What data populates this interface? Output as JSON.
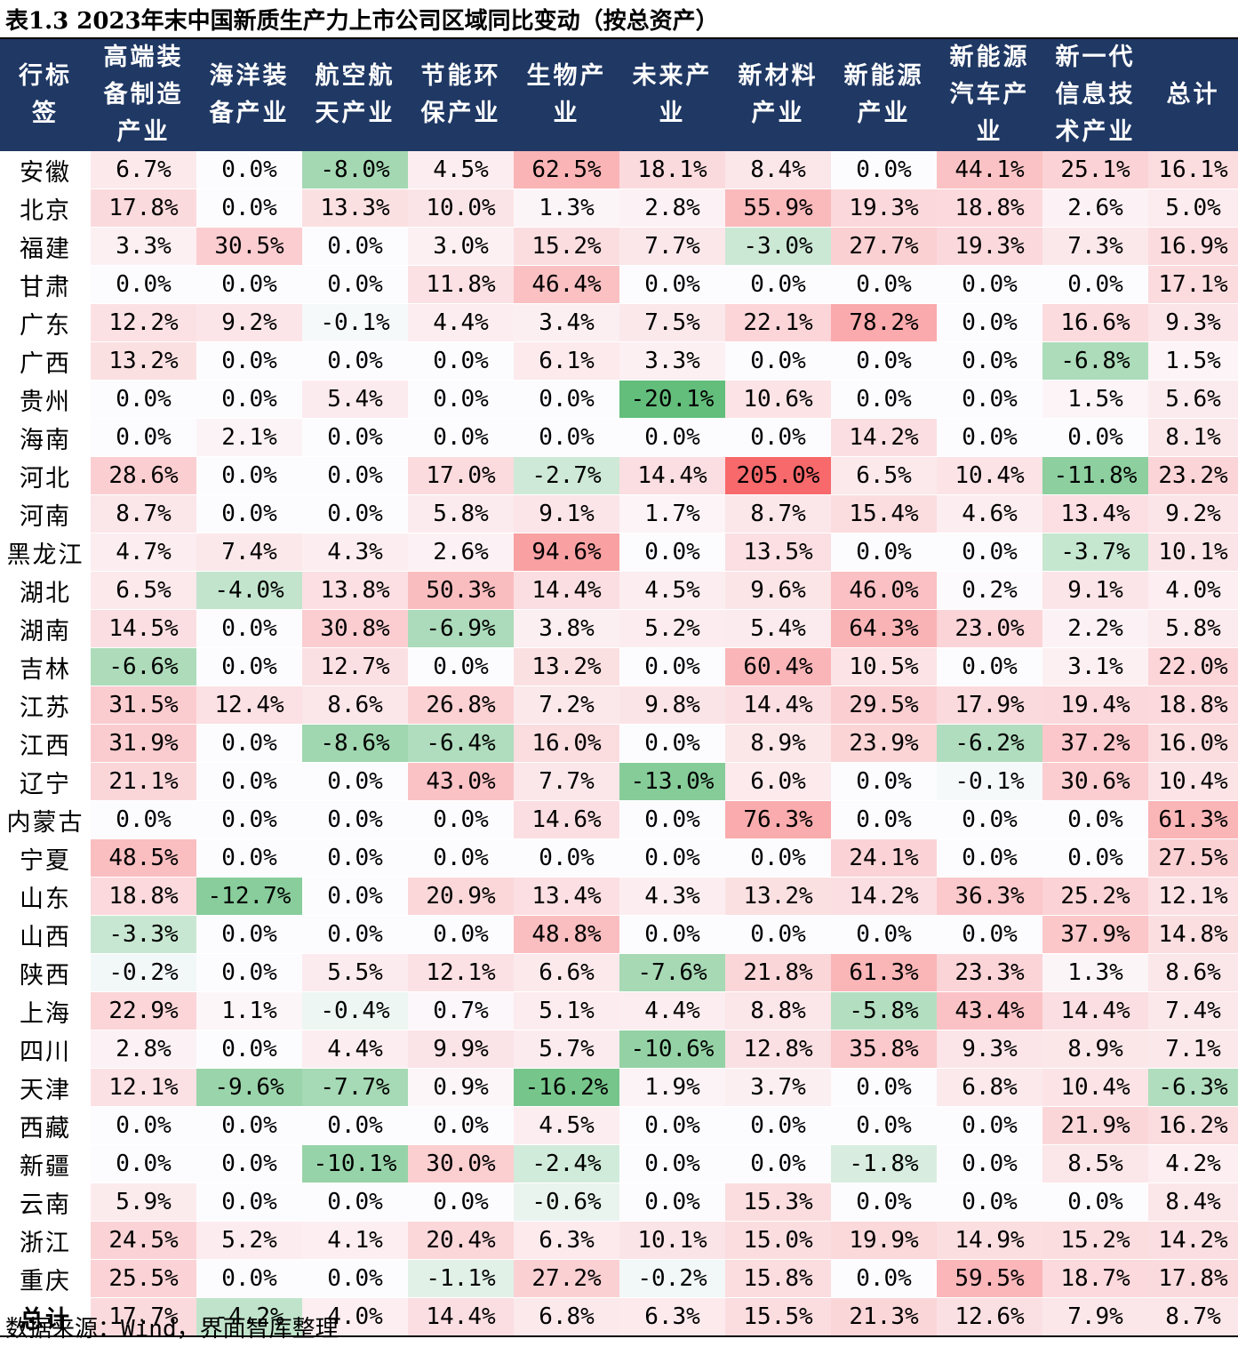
{
  "title": "表1.3 2023年末中国新质生产力上市公司区域同比变动（按总资产）",
  "headers": [
    "行标\n签",
    "高端装\n备制造\n产业",
    "海洋装\n备产业",
    "航空航\n天产业",
    "节能环\n保产业",
    "生物产\n业",
    "未来产\n业",
    "新材料\n产业",
    "新能源\n产业",
    "新能源\n汽车产\n业",
    "新一代\n信息技\n术产业",
    "总计"
  ],
  "rows": [
    {
      "region": "安徽",
      "values": [
        "6.7%",
        "0.0%",
        "-8.0%",
        "4.5%",
        "62.5%",
        "18.1%",
        "8.4%",
        "0.0%",
        "44.1%",
        "25.1%",
        "16.1%"
      ]
    },
    {
      "region": "北京",
      "values": [
        "17.8%",
        "0.0%",
        "13.3%",
        "10.0%",
        "1.3%",
        "2.8%",
        "55.9%",
        "19.3%",
        "18.8%",
        "2.6%",
        "5.0%"
      ]
    },
    {
      "region": "福建",
      "values": [
        "3.3%",
        "30.5%",
        "0.0%",
        "3.0%",
        "15.2%",
        "7.7%",
        "-3.0%",
        "27.7%",
        "19.3%",
        "7.3%",
        "16.9%"
      ]
    },
    {
      "region": "甘肃",
      "values": [
        "0.0%",
        "0.0%",
        "0.0%",
        "11.8%",
        "46.4%",
        "0.0%",
        "0.0%",
        "0.0%",
        "0.0%",
        "0.0%",
        "17.1%"
      ]
    },
    {
      "region": "广东",
      "values": [
        "12.2%",
        "9.2%",
        "-0.1%",
        "4.4%",
        "3.4%",
        "7.5%",
        "22.1%",
        "78.2%",
        "0.0%",
        "16.6%",
        "9.3%"
      ]
    },
    {
      "region": "广西",
      "values": [
        "13.2%",
        "0.0%",
        "0.0%",
        "0.0%",
        "6.1%",
        "3.3%",
        "0.0%",
        "0.0%",
        "0.0%",
        "-6.8%",
        "1.5%"
      ]
    },
    {
      "region": "贵州",
      "values": [
        "0.0%",
        "0.0%",
        "5.4%",
        "0.0%",
        "0.0%",
        "-20.1%",
        "10.6%",
        "0.0%",
        "0.0%",
        "1.5%",
        "5.6%"
      ]
    },
    {
      "region": "海南",
      "values": [
        "0.0%",
        "2.1%",
        "0.0%",
        "0.0%",
        "0.0%",
        "0.0%",
        "0.0%",
        "14.2%",
        "0.0%",
        "0.0%",
        "8.1%"
      ]
    },
    {
      "region": "河北",
      "values": [
        "28.6%",
        "0.0%",
        "0.0%",
        "17.0%",
        "-2.7%",
        "14.4%",
        "205.0%",
        "6.5%",
        "10.4%",
        "-11.8%",
        "23.2%"
      ]
    },
    {
      "region": "河南",
      "values": [
        "8.7%",
        "0.0%",
        "0.0%",
        "5.8%",
        "9.1%",
        "1.7%",
        "8.7%",
        "15.4%",
        "4.6%",
        "13.4%",
        "9.2%"
      ]
    },
    {
      "region": "黑龙江",
      "values": [
        "4.7%",
        "7.4%",
        "4.3%",
        "2.6%",
        "94.6%",
        "0.0%",
        "13.5%",
        "0.0%",
        "0.0%",
        "-3.7%",
        "10.1%"
      ]
    },
    {
      "region": "湖北",
      "values": [
        "6.5%",
        "-4.0%",
        "13.8%",
        "50.3%",
        "14.4%",
        "4.5%",
        "9.6%",
        "46.0%",
        "0.2%",
        "9.1%",
        "4.0%"
      ]
    },
    {
      "region": "湖南",
      "values": [
        "14.5%",
        "0.0%",
        "30.8%",
        "-6.9%",
        "3.8%",
        "5.2%",
        "5.4%",
        "64.3%",
        "23.0%",
        "2.2%",
        "5.8%"
      ]
    },
    {
      "region": "吉林",
      "values": [
        "-6.6%",
        "0.0%",
        "12.7%",
        "0.0%",
        "13.2%",
        "0.0%",
        "60.4%",
        "10.5%",
        "0.0%",
        "3.1%",
        "22.0%"
      ]
    },
    {
      "region": "江苏",
      "values": [
        "31.5%",
        "12.4%",
        "8.6%",
        "26.8%",
        "7.2%",
        "9.8%",
        "14.4%",
        "29.5%",
        "17.9%",
        "19.4%",
        "18.8%"
      ]
    },
    {
      "region": "江西",
      "values": [
        "31.9%",
        "0.0%",
        "-8.6%",
        "-6.4%",
        "16.0%",
        "0.0%",
        "8.9%",
        "23.9%",
        "-6.2%",
        "37.2%",
        "16.0%"
      ]
    },
    {
      "region": "辽宁",
      "values": [
        "21.1%",
        "0.0%",
        "0.0%",
        "43.0%",
        "7.7%",
        "-13.0%",
        "6.0%",
        "0.0%",
        "-0.1%",
        "30.6%",
        "10.4%"
      ]
    },
    {
      "region": "内蒙古",
      "values": [
        "0.0%",
        "0.0%",
        "0.0%",
        "0.0%",
        "14.6%",
        "0.0%",
        "76.3%",
        "0.0%",
        "0.0%",
        "0.0%",
        "61.3%"
      ]
    },
    {
      "region": "宁夏",
      "values": [
        "48.5%",
        "0.0%",
        "0.0%",
        "0.0%",
        "0.0%",
        "0.0%",
        "0.0%",
        "24.1%",
        "0.0%",
        "0.0%",
        "27.5%"
      ]
    },
    {
      "region": "山东",
      "values": [
        "18.8%",
        "-12.7%",
        "0.0%",
        "20.9%",
        "13.4%",
        "4.3%",
        "13.2%",
        "14.2%",
        "36.3%",
        "25.2%",
        "12.1%"
      ]
    },
    {
      "region": "山西",
      "values": [
        "-3.3%",
        "0.0%",
        "0.0%",
        "0.0%",
        "48.8%",
        "0.0%",
        "0.0%",
        "0.0%",
        "0.0%",
        "37.9%",
        "14.8%"
      ]
    },
    {
      "region": "陕西",
      "values": [
        "-0.2%",
        "0.0%",
        "5.5%",
        "12.1%",
        "6.6%",
        "-7.6%",
        "21.8%",
        "61.3%",
        "23.3%",
        "1.3%",
        "8.6%"
      ]
    },
    {
      "region": "上海",
      "values": [
        "22.9%",
        "1.1%",
        "-0.4%",
        "0.7%",
        "5.1%",
        "4.4%",
        "8.8%",
        "-5.8%",
        "43.4%",
        "14.4%",
        "7.4%"
      ]
    },
    {
      "region": "四川",
      "values": [
        "2.8%",
        "0.0%",
        "4.4%",
        "9.9%",
        "5.7%",
        "-10.6%",
        "12.8%",
        "35.8%",
        "9.3%",
        "8.9%",
        "7.1%"
      ]
    },
    {
      "region": "天津",
      "values": [
        "12.1%",
        "-9.6%",
        "-7.7%",
        "0.9%",
        "-16.2%",
        "1.9%",
        "3.7%",
        "0.0%",
        "6.8%",
        "10.4%",
        "-6.3%"
      ]
    },
    {
      "region": "西藏",
      "values": [
        "0.0%",
        "0.0%",
        "0.0%",
        "0.0%",
        "4.5%",
        "0.0%",
        "0.0%",
        "0.0%",
        "0.0%",
        "21.9%",
        "16.2%"
      ]
    },
    {
      "region": "新疆",
      "values": [
        "0.0%",
        "0.0%",
        "-10.1%",
        "30.0%",
        "-2.4%",
        "0.0%",
        "0.0%",
        "-1.8%",
        "0.0%",
        "8.5%",
        "4.2%"
      ]
    },
    {
      "region": "云南",
      "values": [
        "5.9%",
        "0.0%",
        "0.0%",
        "0.0%",
        "-0.6%",
        "0.0%",
        "15.3%",
        "0.0%",
        "0.0%",
        "0.0%",
        "8.4%"
      ]
    },
    {
      "region": "浙江",
      "values": [
        "24.5%",
        "5.2%",
        "4.1%",
        "20.4%",
        "6.3%",
        "10.1%",
        "15.0%",
        "19.9%",
        "14.9%",
        "15.2%",
        "14.2%"
      ]
    },
    {
      "region": "重庆",
      "values": [
        "25.5%",
        "0.0%",
        "0.0%",
        "-1.1%",
        "27.2%",
        "-0.2%",
        "15.8%",
        "0.0%",
        "59.5%",
        "18.7%",
        "17.8%"
      ]
    },
    {
      "region": "总计",
      "values": [
        "17.7%",
        "-4.2%",
        "4.0%",
        "14.4%",
        "6.8%",
        "6.3%",
        "15.5%",
        "21.3%",
        "12.6%",
        "7.9%",
        "8.7%"
      ]
    }
  ],
  "source": "数据来源：Wind，界面智库整理",
  "colors": {
    "header_bg": "#1f3864",
    "header_text": "#ffffff",
    "positive_max": "#f8696b",
    "negative_max": "#63be7b",
    "neutral": "#fcfcff"
  }
}
